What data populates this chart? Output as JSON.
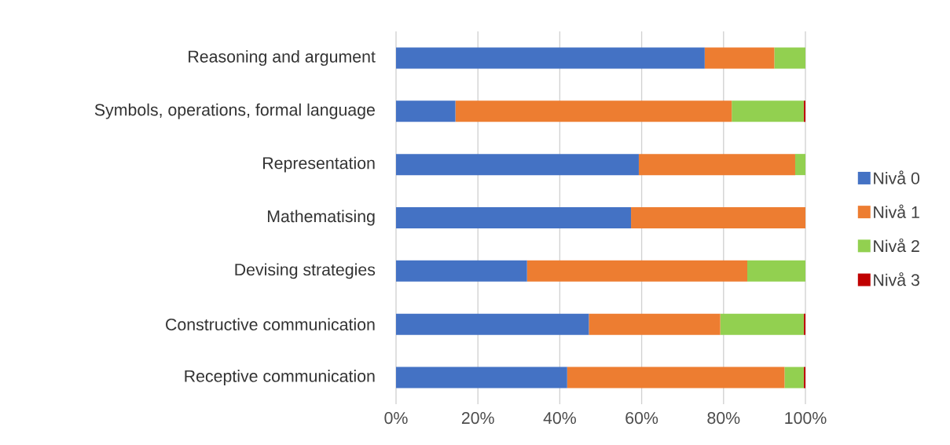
{
  "chart_data": {
    "type": "bar",
    "orientation": "horizontal",
    "stacked": true,
    "categories": [
      "Reasoning and argument",
      "Symbols, operations, formal language",
      "Representation",
      "Mathematising",
      "Devising strategies",
      "Constructive communication",
      "Receptive communication"
    ],
    "series": [
      {
        "name": "Nivå 0",
        "color": "#4472c4",
        "values": [
          75.4,
          14.5,
          59.3,
          57.4,
          32.0,
          47.1,
          41.8
        ]
      },
      {
        "name": "Nivå 1",
        "color": "#ed7d31",
        "values": [
          17.0,
          67.5,
          38.2,
          42.6,
          53.8,
          32.1,
          53.1
        ]
      },
      {
        "name": "Nivå 2",
        "color": "#92d050",
        "values": [
          7.6,
          17.6,
          2.5,
          0,
          14.2,
          20.4,
          4.7
        ]
      },
      {
        "name": "Nivå 3",
        "color": "#c00000",
        "values": [
          0,
          0.4,
          0,
          0,
          0,
          0.4,
          0.4
        ]
      }
    ],
    "xlim": [
      0,
      100
    ],
    "xticks": [
      {
        "value": 0,
        "label": "0%"
      },
      {
        "value": 20,
        "label": "20%"
      },
      {
        "value": 40,
        "label": "40%"
      },
      {
        "value": 60,
        "label": "60%"
      },
      {
        "value": 80,
        "label": "80%"
      },
      {
        "value": 100,
        "label": "100%"
      }
    ],
    "grid": "x",
    "legend": "right"
  }
}
